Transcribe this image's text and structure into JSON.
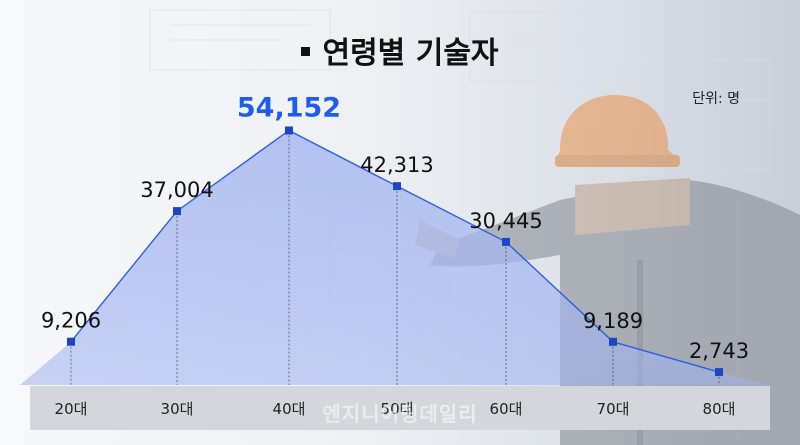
{
  "title": "연령별 기술자",
  "unit_label": "단위: 명",
  "watermark": "엔지니어링데일리",
  "colors": {
    "line": "#2f5fe0",
    "marker": "#1f44c4",
    "highlight": "#1f5cf0",
    "axis_band": "#d4d6db"
  },
  "chart_data": {
    "type": "area",
    "categories": [
      "20대",
      "30대",
      "40대",
      "50대",
      "60대",
      "70대",
      "80대"
    ],
    "values": [
      9206,
      37004,
      54152,
      42313,
      30445,
      9189,
      2743
    ],
    "data_labels": [
      "9,206",
      "37,004",
      "54,152",
      "42,313",
      "30,445",
      "9,189",
      "2,743"
    ],
    "highlight_index": 2,
    "ylim": [
      0,
      60000
    ],
    "grid": false,
    "xlabel": "",
    "ylabel": ""
  }
}
